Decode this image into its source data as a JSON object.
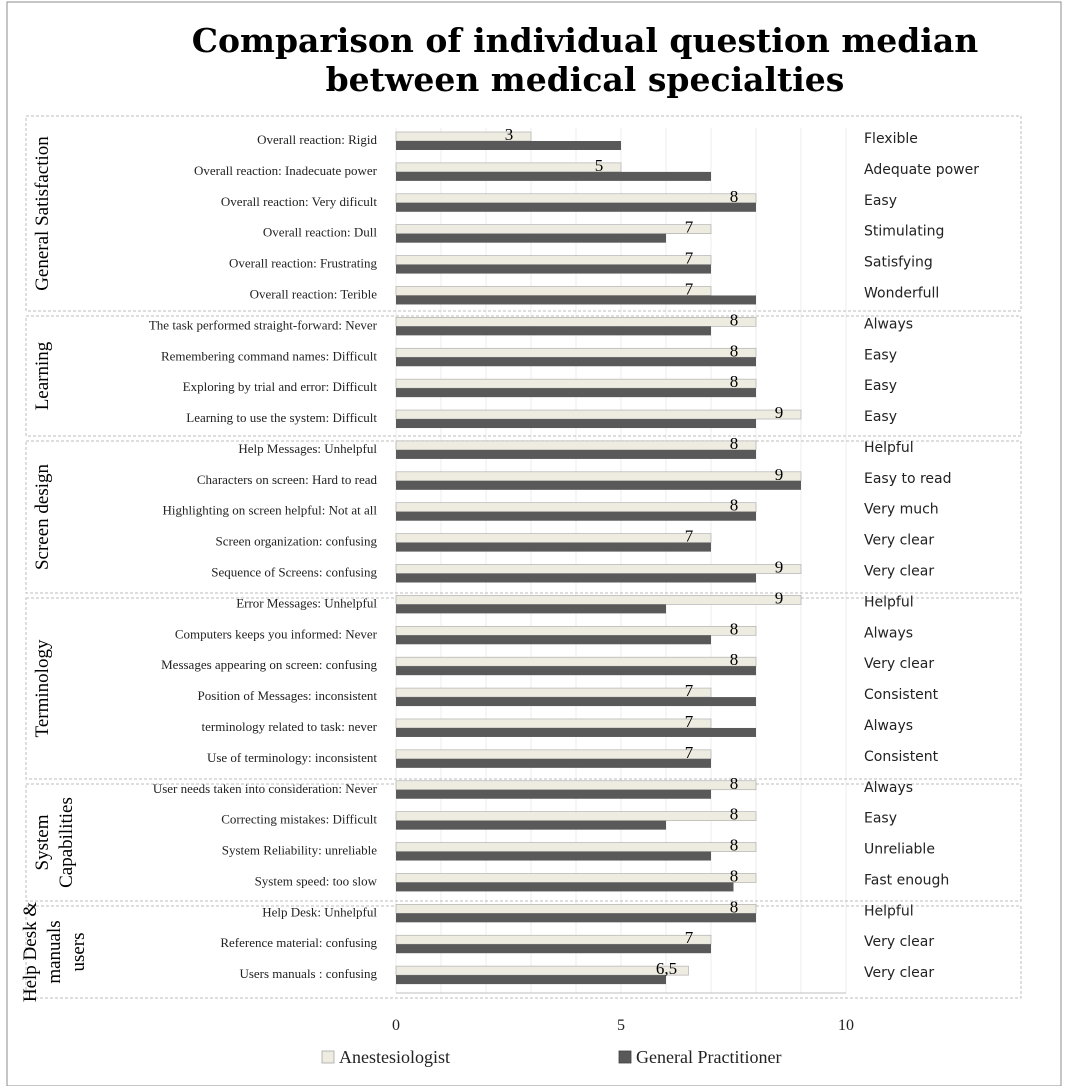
{
  "chart_data": {
    "type": "bar",
    "orientation": "horizontal",
    "title": "Comparison of individual question median between medical specialties",
    "title_lines": [
      "Comparison of individual question median",
      "between medical specialties"
    ],
    "xlim": [
      0,
      10
    ],
    "x_ticks": [
      "0",
      "5",
      "10"
    ],
    "grid": true,
    "legend_placement": "bottom",
    "series": [
      {
        "name": "Anestesiologist",
        "color": "#eeece1",
        "border": "#a6a6a6"
      },
      {
        "name": "General Practitioner",
        "color": "#595959",
        "border": "#404040"
      }
    ],
    "groups": [
      {
        "name_lines": [
          "General Satisfaction"
        ],
        "items": [
          {
            "label": "Overall reaction: Rigid",
            "right": "Flexible",
            "anest": 3,
            "anest_label": "3",
            "gp": 5
          },
          {
            "label": "Overall reaction: Inadecuate power",
            "right": "Adequate power",
            "anest": 5,
            "anest_label": "5",
            "gp": 7
          },
          {
            "label": "Overall reaction: Very dificult",
            "right": "Easy",
            "anest": 8,
            "anest_label": "8",
            "gp": 8
          },
          {
            "label": "Overall reaction: Dull",
            "right": "Stimulating",
            "anest": 7,
            "anest_label": "7",
            "gp": 6
          },
          {
            "label": "Overall reaction: Frustrating",
            "right": "Satisfying",
            "anest": 7,
            "anest_label": "7",
            "gp": 7
          },
          {
            "label": "Overall reaction: Terible",
            "right": "Wonderfull",
            "anest": 7,
            "anest_label": "7",
            "gp": 8
          }
        ]
      },
      {
        "name_lines": [
          "Learning"
        ],
        "items": [
          {
            "label": "The task performed straight-forward: Never",
            "right": "Always",
            "anest": 8,
            "anest_label": "8",
            "gp": 7
          },
          {
            "label": "Remembering command names: Difficult",
            "right": "Easy",
            "anest": 8,
            "anest_label": "8",
            "gp": 8
          },
          {
            "label": "Exploring by trial and error: Difficult",
            "right": "Easy",
            "anest": 8,
            "anest_label": "8",
            "gp": 8
          },
          {
            "label": "Learning to use the system: Difficult",
            "right": "Easy",
            "anest": 9,
            "anest_label": "9",
            "gp": 8
          }
        ]
      },
      {
        "name_lines": [
          "Screen design"
        ],
        "items": [
          {
            "label": "Help Messages: Unhelpful",
            "right": "Helpful",
            "anest": 8,
            "anest_label": "8",
            "gp": 8
          },
          {
            "label": "Characters on screen: Hard to read",
            "right": "Easy to read",
            "anest": 9,
            "anest_label": "9",
            "gp": 9
          },
          {
            "label": "Highlighting on screen helpful: Not at all",
            "right": "Very much",
            "anest": 8,
            "anest_label": "8",
            "gp": 8
          },
          {
            "label": "Screen organization: confusing",
            "right": "Very clear",
            "anest": 7,
            "anest_label": "7",
            "gp": 7
          },
          {
            "label": "Sequence of Screens: confusing",
            "right": "Very clear",
            "anest": 9,
            "anest_label": "9",
            "gp": 8
          }
        ]
      },
      {
        "name_lines": [
          "Terminology"
        ],
        "items": [
          {
            "label": "Error Messages: Unhelpful",
            "right": "Helpful",
            "anest": 9,
            "anest_label": "9",
            "gp": 6
          },
          {
            "label": "Computers keeps you informed: Never",
            "right": "Always",
            "anest": 8,
            "anest_label": "8",
            "gp": 7
          },
          {
            "label": "Messages appearing on screen: confusing",
            "right": "Very clear",
            "anest": 8,
            "anest_label": "8",
            "gp": 8
          },
          {
            "label": "Position of Messages: inconsistent",
            "right": "Consistent",
            "anest": 7,
            "anest_label": "7",
            "gp": 8
          },
          {
            "label": "terminology related to task: never",
            "right": "Always",
            "anest": 7,
            "anest_label": "7",
            "gp": 8
          },
          {
            "label": "Use of terminology: inconsistent",
            "right": "Consistent",
            "anest": 7,
            "anest_label": "7",
            "gp": 7
          }
        ]
      },
      {
        "name_lines": [
          "System",
          "Capabilities"
        ],
        "items": [
          {
            "label": "User needs taken into consideration: Never",
            "right": "Always",
            "anest": 8,
            "anest_label": "8",
            "gp": 7
          },
          {
            "label": "Correcting mistakes: Difficult",
            "right": "Easy",
            "anest": 8,
            "anest_label": "8",
            "gp": 6
          },
          {
            "label": "System Reliability: unreliable",
            "right": "Unreliable",
            "anest": 8,
            "anest_label": "8",
            "gp": 7
          },
          {
            "label": "System speed: too slow",
            "right": "Fast enough",
            "anest": 8,
            "anest_label": "8",
            "gp": 7.5
          }
        ]
      },
      {
        "name_lines": [
          "Help Desk &",
          "manuals",
          "users"
        ],
        "items": [
          {
            "label": "Help Desk: Unhelpful",
            "right": "Helpful",
            "anest": 8,
            "anest_label": "8",
            "gp": 8
          },
          {
            "label": "Reference material: confusing",
            "right": "Very clear",
            "anest": 7,
            "anest_label": "7",
            "gp": 7
          },
          {
            "label": "Users manuals : confusing",
            "right": "Very clear",
            "anest": 6.5,
            "anest_label": "6,5",
            "gp": 6
          }
        ]
      }
    ]
  }
}
